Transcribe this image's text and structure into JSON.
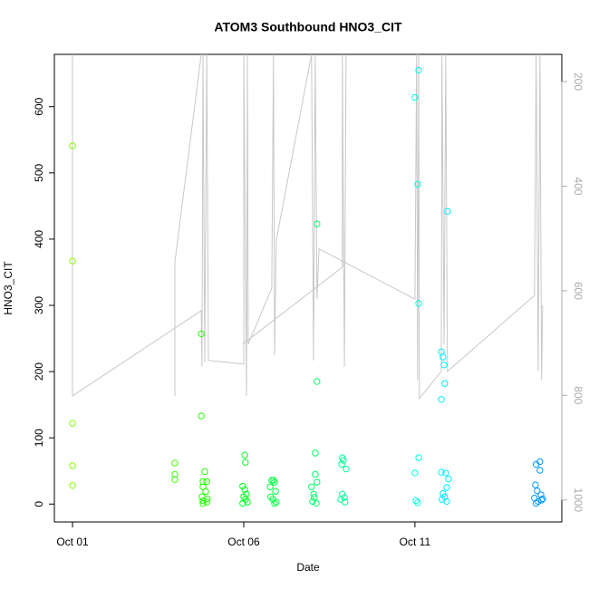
{
  "chart_data": {
    "type": "scatter",
    "title": "ATOM3 Southbound HNO3_CIT",
    "x_label": "Date",
    "y_label": "HNO3_CIT",
    "xlim": [
      -0.53,
      14.29
    ],
    "xticks": [
      {
        "value": 0,
        "label": "Oct 01"
      },
      {
        "value": 5,
        "label": "Oct 06"
      },
      {
        "value": 10,
        "label": "Oct 11"
      }
    ],
    "ylim": [
      -27,
      679
    ],
    "yticks": [
      0,
      100,
      200,
      300,
      400,
      500,
      600
    ],
    "y2lim": [
      1042,
      148
    ],
    "y2ticks": [
      200,
      400,
      600,
      800,
      1000
    ],
    "y2_color": "#aaaaaa",
    "series": [
      {
        "color": "#7fff00",
        "x": [
          0,
          0,
          0,
          0,
          0
        ],
        "values": [
          541,
          367,
          122,
          58,
          28
        ]
      },
      {
        "color": "#44ff00",
        "x": [
          2.99,
          2.99,
          2.99
        ],
        "values": [
          62,
          45,
          37
        ]
      },
      {
        "color": "#22ff00",
        "x": [
          3.76,
          3.76,
          3.86,
          3.81,
          3.92,
          3.81,
          3.89,
          3.78,
          3.94,
          3.81,
          3.81,
          3.92
        ],
        "values": [
          257,
          133,
          49,
          34,
          34,
          26,
          19,
          11,
          8,
          5,
          1,
          3
        ]
      },
      {
        "color": "#00ff22",
        "x": [
          5.03,
          5.05,
          4.97,
          5.03,
          5.08,
          5.0,
          5.05,
          4.97,
          5.11
        ],
        "values": [
          74,
          63,
          27,
          22,
          15,
          11,
          7,
          1,
          3
        ]
      },
      {
        "color": "#00ff40",
        "x": [
          5.82,
          5.9,
          5.87,
          5.77,
          5.93,
          5.79,
          5.85,
          5.95,
          5.9
        ],
        "values": [
          36,
          33,
          36,
          26,
          19,
          11,
          7,
          3,
          1
        ]
      },
      {
        "color": "#00ff66",
        "x": [
          7.09,
          7.09,
          7.14,
          6.98,
          7.04,
          7.06,
          7.01,
          7.12,
          7.14,
          7.14
        ],
        "values": [
          77,
          45,
          33,
          26,
          15,
          10,
          4,
          1,
          423,
          185
        ]
      },
      {
        "color": "#00ff99",
        "x": [
          7.88,
          7.91,
          7.86,
          7.99,
          7.88,
          7.94,
          7.83,
          7.96
        ],
        "values": [
          70,
          66,
          60,
          53,
          15,
          10,
          7,
          3
        ]
      },
      {
        "color": "#00ffe0",
        "x": [
          10.11,
          10.0,
          10.08,
          10.11,
          10.11,
          10.0,
          10.03,
          10.08
        ],
        "values": [
          655,
          614,
          483,
          303,
          70,
          47,
          5,
          2
        ]
      },
      {
        "color": "#00eeff",
        "x": [
          10.95,
          10.77,
          10.82,
          10.85,
          10.87,
          10.77,
          10.77,
          10.9,
          10.98,
          10.93,
          10.82,
          10.87,
          10.79,
          10.93
        ],
        "values": [
          442,
          230,
          222,
          210,
          182,
          158,
          48,
          47,
          38,
          25,
          16,
          11,
          7,
          4
        ]
      },
      {
        "color": "#0099ff",
        "x": [
          13.65,
          13.54,
          13.65,
          13.52,
          13.57,
          13.68,
          13.49,
          13.7,
          13.6,
          13.54,
          13.73
        ],
        "values": [
          64,
          60,
          51,
          29,
          20,
          14,
          9,
          6,
          4,
          1,
          8
        ]
      },
      {
        "type": "line",
        "axis": "y2",
        "color": "#c8c8c8",
        "x": [
          0,
          0,
          3.76,
          3.78,
          3.81,
          3.86,
          3.92,
          3.97,
          5.0,
          5.0,
          5.08,
          5.11,
          5.13,
          5.82,
          5.87,
          5.9,
          5.95,
          6.98,
          7.04,
          7.09,
          7.14,
          7.2,
          10.0,
          10.05,
          10.08,
          10.11,
          10.13,
          10.77,
          10.79,
          10.85,
          10.9,
          10.95,
          13.49,
          13.54,
          13.6,
          13.65,
          13.7,
          13.73,
          null,
          2.99,
          2.99,
          3.76,
          null,
          4.97,
          7.88,
          7.88,
          7.94,
          7.99
        ],
        "values": [
          148,
          801,
          638,
          745,
          148,
          737,
          148,
          733,
          740,
          148,
          801,
          148,
          702,
          595,
          148,
          723,
          503,
          148,
          733,
          148,
          616,
          520,
          616,
          148,
          771,
          148,
          806,
          754,
          148,
          702,
          148,
          754,
          609,
          148,
          754,
          148,
          771,
          628,
          null,
          801,
          545,
          148,
          null,
          702,
          555,
          148,
          745,
          148
        ]
      }
    ]
  }
}
